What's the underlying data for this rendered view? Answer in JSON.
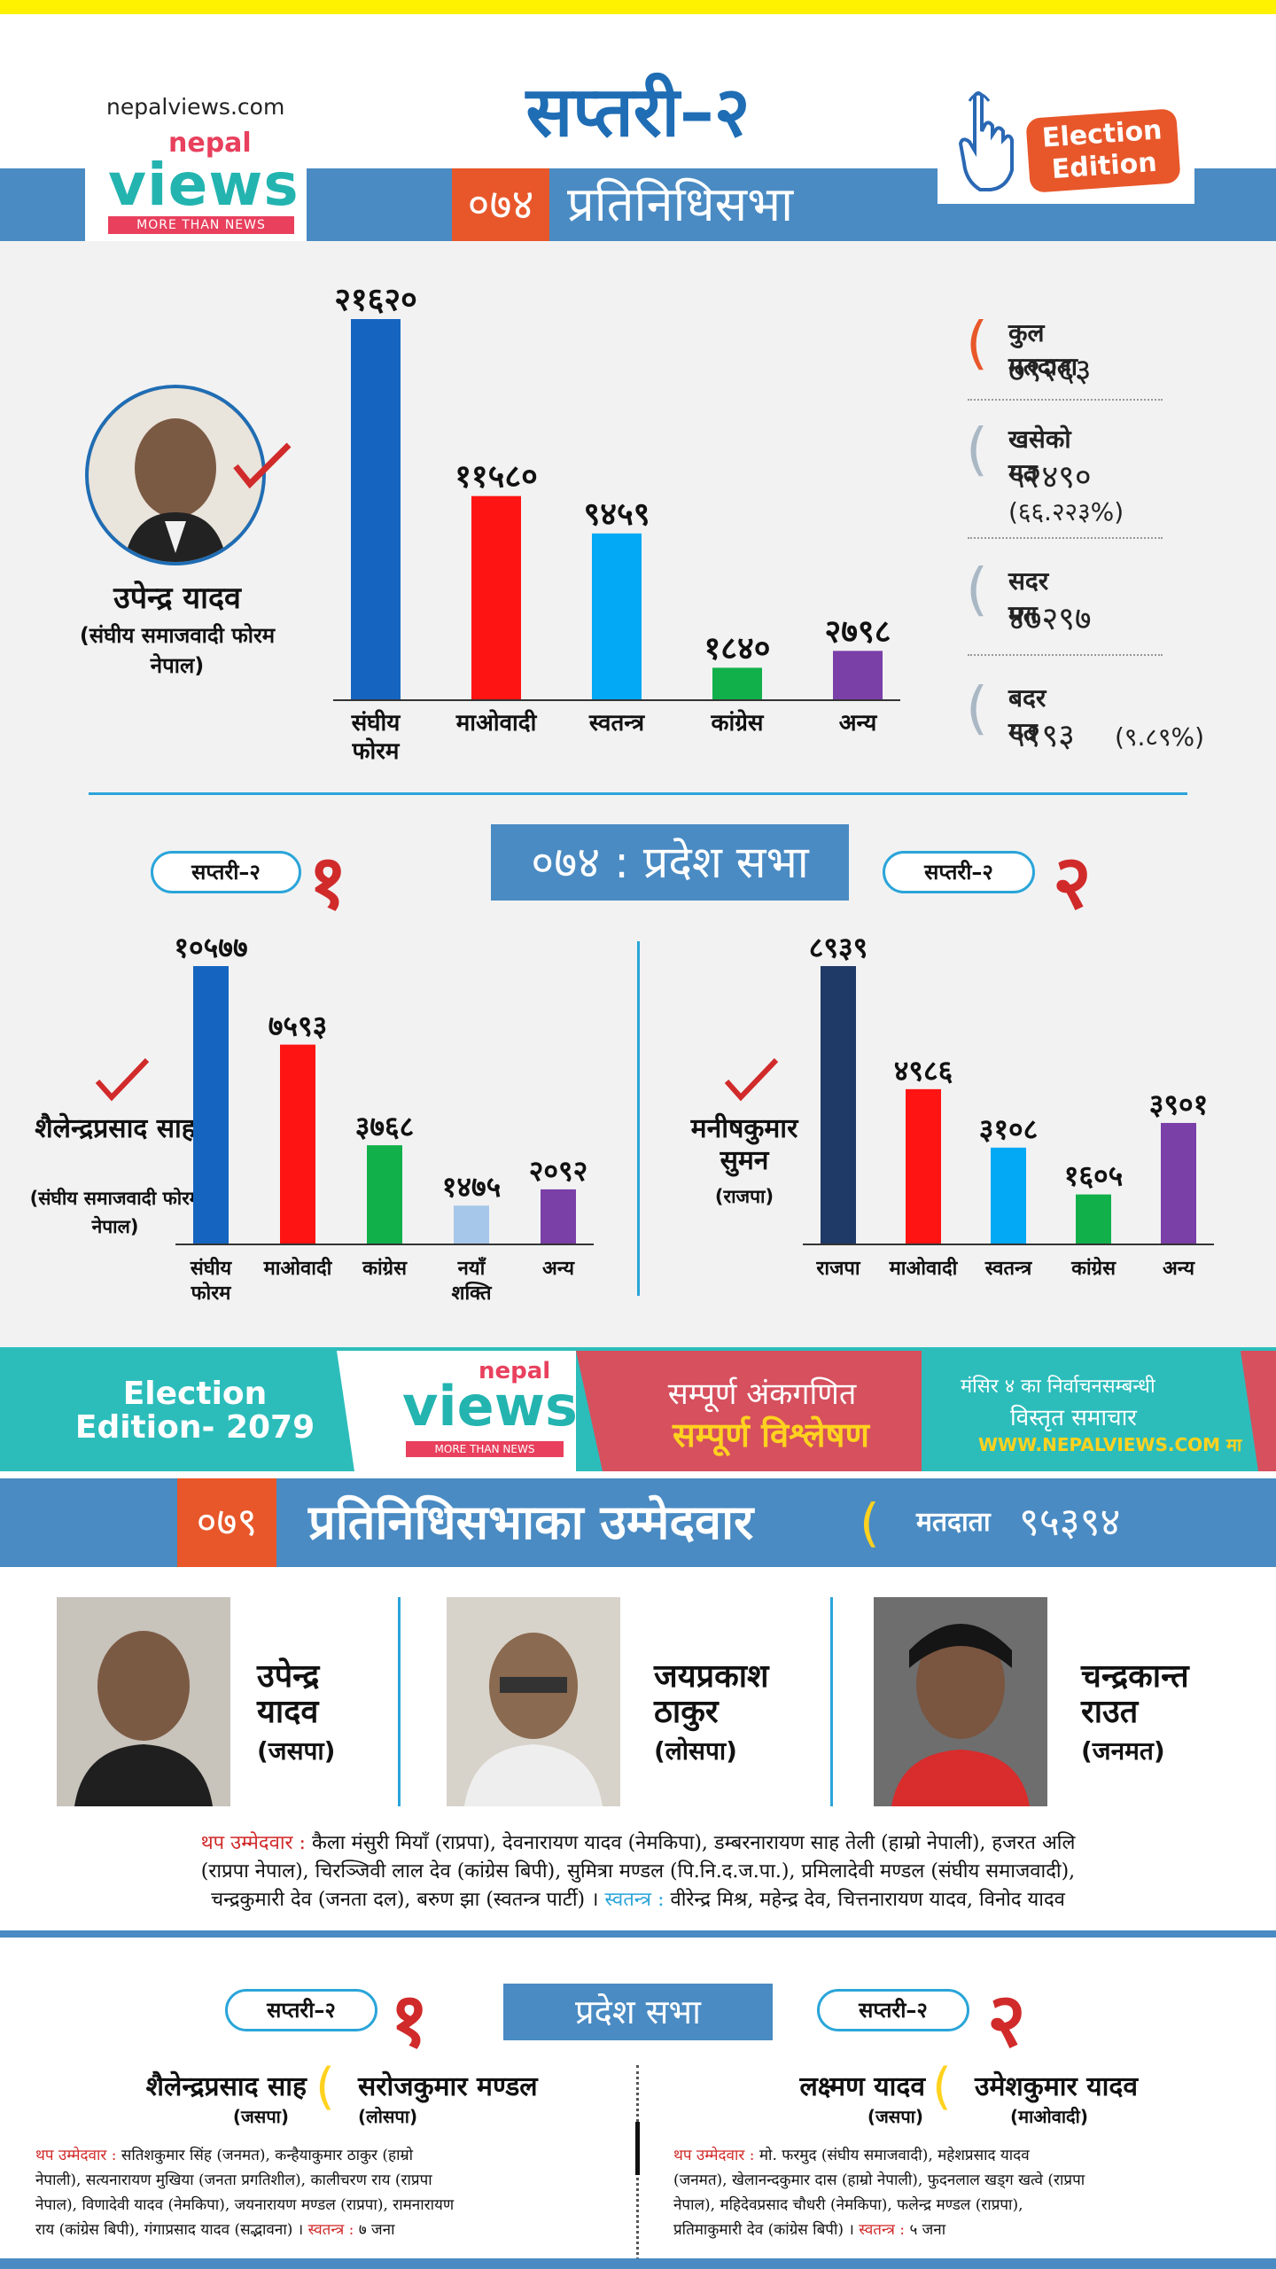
{
  "header": {
    "site": "nepalviews.com",
    "logo_nepal": "nepal",
    "logo_views": "views",
    "logo_tagline": "MORE THAN NEWS",
    "title": "सप्तरी–२",
    "edition": "Election Edition",
    "year_badge": "०७४",
    "house": "प्रतिनिधिसभा"
  },
  "winner_hor": {
    "name": "उपेन्द्र यादव",
    "party": "(संघीय समाजवादी फोरम नेपाल)"
  },
  "stats": [
    {
      "label": "कुल मतदाता",
      "value": "७९२६३",
      "sub": ""
    },
    {
      "label": "खसेको मत",
      "value": "५२४९०",
      "sub": "(६६.२२३%)"
    },
    {
      "label": "सदर मत",
      "value": "४७२९७",
      "sub": ""
    },
    {
      "label": "बदर मत",
      "value": "५१९३",
      "sub": "(९.८९%)"
    }
  ],
  "pradesh_header": "०७४ : प्रदेश सभा",
  "constituency_1": {
    "tag": "सप्तरी–२",
    "num": "१"
  },
  "constituency_2": {
    "tag": "सप्तरी–२",
    "num": "२"
  },
  "winner_p1": {
    "name": "शैलेन्द्रप्रसाद साह",
    "party": "(संघीय समाजवादी फोरम नेपाल)"
  },
  "winner_p2": {
    "name": "मनीषकुमार सुमन",
    "party": "(राजपा)"
  },
  "chart_data": [
    {
      "type": "bar",
      "categories": [
        "संघीय फोरम",
        "माओवादी",
        "स्वतन्त्र",
        "कांग्रेस",
        "अन्य"
      ],
      "values": [
        21620,
        11580,
        9459,
        1840,
        2798
      ],
      "labels": [
        "२१६२०",
        "११५८०",
        "९४५९",
        "१८४०",
        "२७९८"
      ],
      "colors": [
        "#1565c0",
        "#ff1414",
        "#03a9f4",
        "#12b04a",
        "#7b3fa8"
      ]
    },
    {
      "type": "bar",
      "categories": [
        "संघीय फोरम",
        "माओवादी",
        "कांग्रेस",
        "नयाँ शक्ति",
        "अन्य"
      ],
      "values": [
        10577,
        7593,
        3768,
        1475,
        2092
      ],
      "labels": [
        "१०५७७",
        "७५९३",
        "३७६८",
        "१४७५",
        "२०९२"
      ],
      "colors": [
        "#1565c0",
        "#ff1414",
        "#12b04a",
        "#a7c7ea",
        "#7b3fa8"
      ]
    },
    {
      "type": "bar",
      "categories": [
        "राजपा",
        "माओवादी",
        "स्वतन्त्र",
        "कांग्रेस",
        "अन्य"
      ],
      "values": [
        8939,
        4986,
        3108,
        1605,
        3901
      ],
      "labels": [
        "८९३९",
        "४९८६",
        "३१०८",
        "१६०५",
        "३९०१"
      ],
      "colors": [
        "#1f3a66",
        "#ff1414",
        "#03a9f4",
        "#12b04a",
        "#7b3fa8"
      ]
    }
  ],
  "banner": {
    "left": "Election Edition- 2079",
    "mid_nepal": "nepal",
    "mid_views": "views",
    "mid_tag": "MORE THAN NEWS",
    "line1": "सम्पूर्ण अंकगणित",
    "line2": "सम्पूर्ण विश्लेषण",
    "r1": "मंसिर ४ का निर्वाचनसम्बन्धी",
    "r2": "विस्तृत समाचार",
    "r3": "WWW.NEPALVIEWS.COM मा"
  },
  "candidates_header": {
    "year": "०७९",
    "title": "प्रतिनिधिसभाका उम्मेदवार",
    "voters_label": "मतदाता",
    "voters": "९५३९४"
  },
  "candidates": [
    {
      "name1": "उपेन्द्र",
      "name2": "यादव",
      "party": "(जसपा)"
    },
    {
      "name1": "जयप्रकाश",
      "name2": "ठाकुर",
      "party": "(लोसपा)"
    },
    {
      "name1": "चन्द्रकान्त",
      "name2": "राउत",
      "party": "(जनमत)"
    }
  ],
  "extra_hor": {
    "label": "थप उम्मेदवार :",
    "text1": "कैला मंसुरी मियाँ (राप्रपा), देवनारायण यादव (नेमकिपा), डम्बरनारायण साह तेली (हाम्रो नेपाली), हजरत अलि",
    "text2": "(राप्रपा नेपाल), चिरञ्जिवी लाल देव (कांग्रेस बिपी), सुमित्रा मण्डल (पि.नि.द.ज.पा.), प्रमिलादेवी मण्डल (संघीय समाजवादी),",
    "text3": "चन्द्रकुमारी देव (जनता दल), बरुण झा (स्वतन्त्र पार्टी) ।",
    "ind_label": "स्वतन्त्र :",
    "ind_text": "वीरेन्द्र मिश्र, महेन्द्र देव, चित्तनारायण यादव, विनोद यादव"
  },
  "pradesh2": {
    "header": "प्रदेश सभा",
    "c1_tag": "सप्तरी–२",
    "c1_num": "१",
    "c2_tag": "सप्तरी–२",
    "c2_num": "२",
    "c1_a": {
      "name": "शैलेन्द्रप्रसाद साह",
      "party": "(जसपा)"
    },
    "c1_b": {
      "name": "सरोजकुमार मण्डल",
      "party": "(लोसपा)"
    },
    "c2_a": {
      "name": "लक्ष्मण यादव",
      "party": "(जसपा)"
    },
    "c2_b": {
      "name": "उमेशकुमार यादव",
      "party": "(माओवादी)"
    },
    "c1_extra_label": "थप उम्मेदवार :",
    "c1_extra_1": "सतिशकुमार सिंह (जनमत), कन्हैयाकुमार ठाकुर (हाम्रो",
    "c1_extra_2": "नेपाली), सत्यनारायण मुखिया (जनता प्रगतिशील), कालीचरण राय (राप्रपा",
    "c1_extra_3": "नेपाल), विणादेवी यादव (नेमकिपा), जयनारायण मण्डल (राप्रपा), रामनारायण",
    "c1_extra_4": "राय (कांग्रेस बिपी), गंगाप्रसाद यादव (सद्भावना) ।",
    "c1_ind_label": "स्वतन्त्र :",
    "c1_ind": "७ जना",
    "c2_extra_label": "थप उम्मेदवार :",
    "c2_extra_1": "मो. फरमुद (संघीय समाजवादी), महेशप्रसाद यादव",
    "c2_extra_2": "(जनमत), खेलानन्दकुमार दास (हाम्रो नेपाली), फुदनलाल खड्ग खत्वे (राप्रपा",
    "c2_extra_3": "नेपाल), महिदेवप्रसाद चौधरी (नेमकिपा), फलेन्द्र मण्डल (राप्रपा),",
    "c2_extra_4": "प्रतिमाकुमारी देव (कांग्रेस बिपी) ।",
    "c2_ind_label": "स्वतन्त्र :",
    "c2_ind": "५ जना"
  }
}
